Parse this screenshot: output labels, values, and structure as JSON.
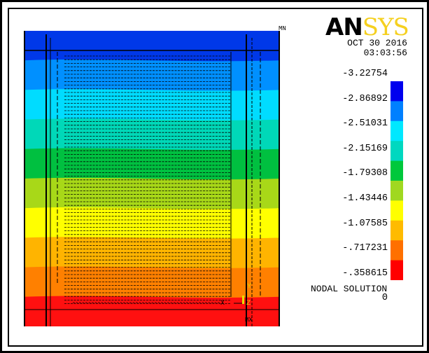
{
  "brand": {
    "an": "AN",
    "sys": "SYS"
  },
  "date": "OCT 30 2016",
  "time": "03:03:56",
  "legend": {
    "values": [
      "-3.22754",
      "-2.86892",
      "-2.51031",
      "-2.15169",
      "-1.79308",
      "-1.43446",
      "-1.07585",
      "-.717231",
      "-.358615",
      "0"
    ],
    "colors": [
      "#0000ee",
      "#0080ff",
      "#00e8ff",
      "#00d8c0",
      "#00c83c",
      "#a0d820",
      "#ffff00",
      "#ffbb00",
      "#ff7000",
      "#ff0000"
    ]
  },
  "plot_band_colors": [
    "#0038e8",
    "#0090ff",
    "#00dcff",
    "#00d8b8",
    "#00c040",
    "#a8d818",
    "#ffff00",
    "#ffb400",
    "#ff8000",
    "#ff1010"
  ],
  "caption": "NODAL SOLUTION",
  "markers": {
    "min": "MN",
    "max": "MX"
  },
  "axes": {
    "y": "Y",
    "x": "X",
    "z": "Z"
  }
}
